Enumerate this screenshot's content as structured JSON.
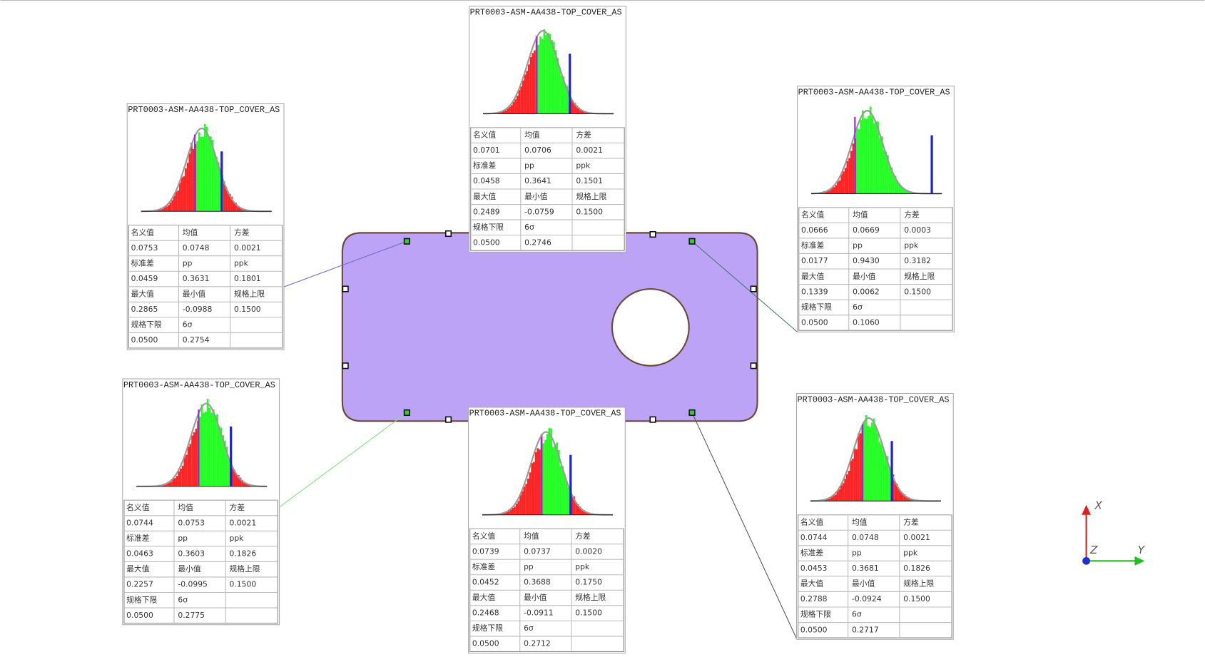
{
  "axes": {
    "x": "X",
    "y": "Y",
    "z": "Z"
  },
  "panels": [
    {
      "title": "PRT0003-ASM-AA438-TOP_COVER_AS",
      "rows": [
        [
          "名义值",
          "均值",
          "方差"
        ],
        [
          "0.0753",
          "0.0748",
          "0.0021"
        ],
        [
          "标准差",
          "pp",
          "ppk"
        ],
        [
          "0.0459",
          "0.3631",
          "0.1801"
        ],
        [
          "最大值",
          "最小值",
          "规格上限"
        ],
        [
          "0.2865",
          "-0.0988",
          "0.1500"
        ],
        [
          "规格下限",
          "6σ"
        ],
        [
          "0.0500",
          "0.2754"
        ]
      ]
    },
    {
      "title": "PRT0003-ASM-AA438-TOP_COVER_AS",
      "rows": [
        [
          "名义值",
          "均值",
          "方差"
        ],
        [
          "0.0701",
          "0.0706",
          "0.0021"
        ],
        [
          "标准差",
          "pp",
          "ppk"
        ],
        [
          "0.0458",
          "0.3641",
          "0.1501"
        ],
        [
          "最大值",
          "最小值",
          "规格上限"
        ],
        [
          "0.2489",
          "-0.0759",
          "0.1500"
        ],
        [
          "规格下限",
          "6σ"
        ],
        [
          "0.0500",
          "0.2746"
        ]
      ]
    },
    {
      "title": "PRT0003-ASM-AA438-TOP_COVER_AS",
      "rows": [
        [
          "名义值",
          "均值",
          "方差"
        ],
        [
          "0.0666",
          "0.0669",
          "0.0003"
        ],
        [
          "标准差",
          "pp",
          "ppk"
        ],
        [
          "0.0177",
          "0.9430",
          "0.3182"
        ],
        [
          "最大值",
          "最小值",
          "规格上限"
        ],
        [
          "0.1339",
          "0.0062",
          "0.1500"
        ],
        [
          "规格下限",
          "6σ"
        ],
        [
          "0.0500",
          "0.1060"
        ]
      ]
    },
    {
      "title": "PRT0003-ASM-AA438-TOP_COVER_AS",
      "rows": [
        [
          "名义值",
          "均值",
          "方差"
        ],
        [
          "0.0744",
          "0.0753",
          "0.0021"
        ],
        [
          "标准差",
          "pp",
          "ppk"
        ],
        [
          "0.0463",
          "0.3603",
          "0.1826"
        ],
        [
          "最大值",
          "最小值",
          "规格上限"
        ],
        [
          "0.2257",
          "-0.0995",
          "0.1500"
        ],
        [
          "规格下限",
          "6σ"
        ],
        [
          "0.0500",
          "0.2775"
        ]
      ]
    },
    {
      "title": "PRT0003-ASM-AA438-TOP_COVER_AS",
      "rows": [
        [
          "名义值",
          "均值",
          "方差"
        ],
        [
          "0.0739",
          "0.0737",
          "0.0020"
        ],
        [
          "标准差",
          "pp",
          "ppk"
        ],
        [
          "0.0452",
          "0.3688",
          "0.1750"
        ],
        [
          "最大值",
          "最小值",
          "规格上限"
        ],
        [
          "0.2468",
          "-0.0911",
          "0.1500"
        ],
        [
          "规格下限",
          "6σ"
        ],
        [
          "0.0500",
          "0.2712"
        ]
      ]
    },
    {
      "title": "PRT0003-ASM-AA438-TOP_COVER_AS",
      "rows": [
        [
          "名义值",
          "均值",
          "方差"
        ],
        [
          "0.0744",
          "0.0748",
          "0.0021"
        ],
        [
          "标准差",
          "pp",
          "ppk"
        ],
        [
          "0.0453",
          "0.3681",
          "0.1826"
        ],
        [
          "最大值",
          "最小值",
          "规格上限"
        ],
        [
          "0.2788",
          "-0.0924",
          "0.1500"
        ],
        [
          "规格下限",
          "6σ"
        ],
        [
          "0.0500",
          "0.2717"
        ]
      ]
    }
  ]
}
